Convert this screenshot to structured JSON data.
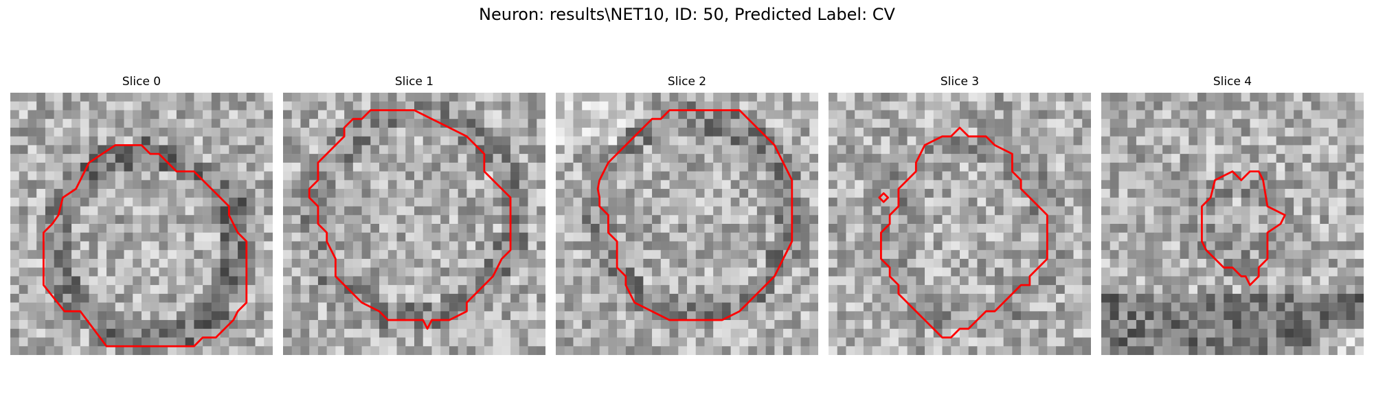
{
  "figure": {
    "title": "Neuron: results\\NET10, ID: 50, Predicted Label: CV",
    "contour_color": "#ff0000"
  },
  "slices": [
    {
      "title": "Slice 0"
    },
    {
      "title": "Slice 1"
    },
    {
      "title": "Slice 2"
    },
    {
      "title": "Slice 3"
    },
    {
      "title": "Slice 4"
    }
  ]
}
